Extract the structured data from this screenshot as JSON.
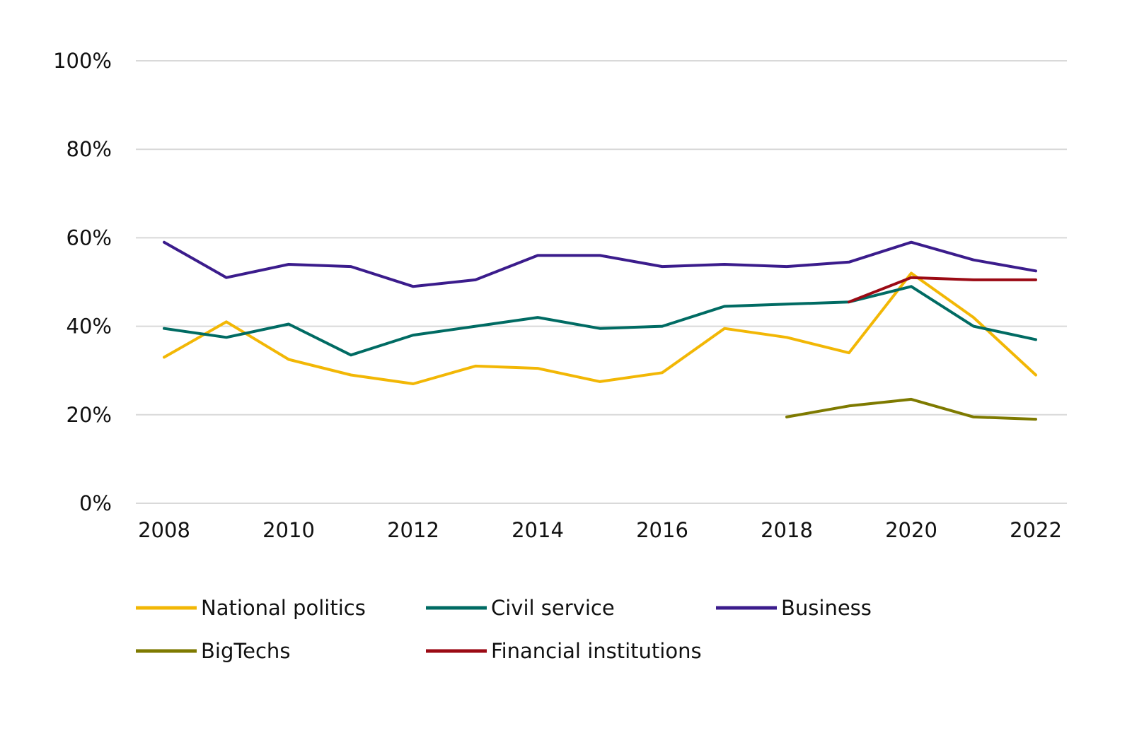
{
  "chart_data": {
    "type": "line",
    "title": "",
    "xlabel": "",
    "ylabel": "",
    "x": [
      2008,
      2009,
      2010,
      2011,
      2012,
      2013,
      2014,
      2015,
      2016,
      2017,
      2018,
      2019,
      2020,
      2021,
      2022
    ],
    "x_tick_labels": [
      "2008",
      "2010",
      "2012",
      "2014",
      "2016",
      "2018",
      "2020",
      "2022"
    ],
    "x_tick_values": [
      2008,
      2010,
      2012,
      2014,
      2016,
      2018,
      2020,
      2022
    ],
    "ylim": [
      0,
      100
    ],
    "y_tick_values": [
      0,
      20,
      40,
      60,
      80,
      100
    ],
    "y_tick_labels": [
      "0%",
      "20%",
      "40%",
      "60%",
      "80%",
      "100%"
    ],
    "grid": true,
    "legend_position": "bottom",
    "series": [
      {
        "name": "National politics",
        "color": "#F2B705",
        "values": [
          33,
          41,
          32.5,
          29,
          27,
          31,
          30.5,
          27.5,
          29.5,
          39.5,
          37.5,
          34,
          52,
          42,
          29
        ]
      },
      {
        "name": "Civil service",
        "color": "#006B63",
        "values": [
          39.5,
          37.5,
          40.5,
          33.5,
          38,
          40,
          42,
          39.5,
          40,
          44.5,
          45,
          45.5,
          49,
          40,
          37
        ]
      },
      {
        "name": "Business",
        "color": "#3B1C8C",
        "values": [
          59,
          51,
          54,
          53.5,
          49,
          50.5,
          56,
          56,
          53.5,
          54,
          53.5,
          54.5,
          59,
          55,
          52.5
        ]
      },
      {
        "name": "BigTechs",
        "color": "#7E7A00",
        "values": [
          null,
          null,
          null,
          null,
          null,
          null,
          null,
          null,
          null,
          null,
          19.5,
          22,
          23.5,
          19.5,
          19
        ]
      },
      {
        "name": "Financial institutions",
        "color": "#9B0A14",
        "values": [
          null,
          null,
          null,
          null,
          null,
          null,
          null,
          null,
          null,
          null,
          null,
          45.5,
          51,
          50.5,
          50.5
        ]
      }
    ]
  }
}
